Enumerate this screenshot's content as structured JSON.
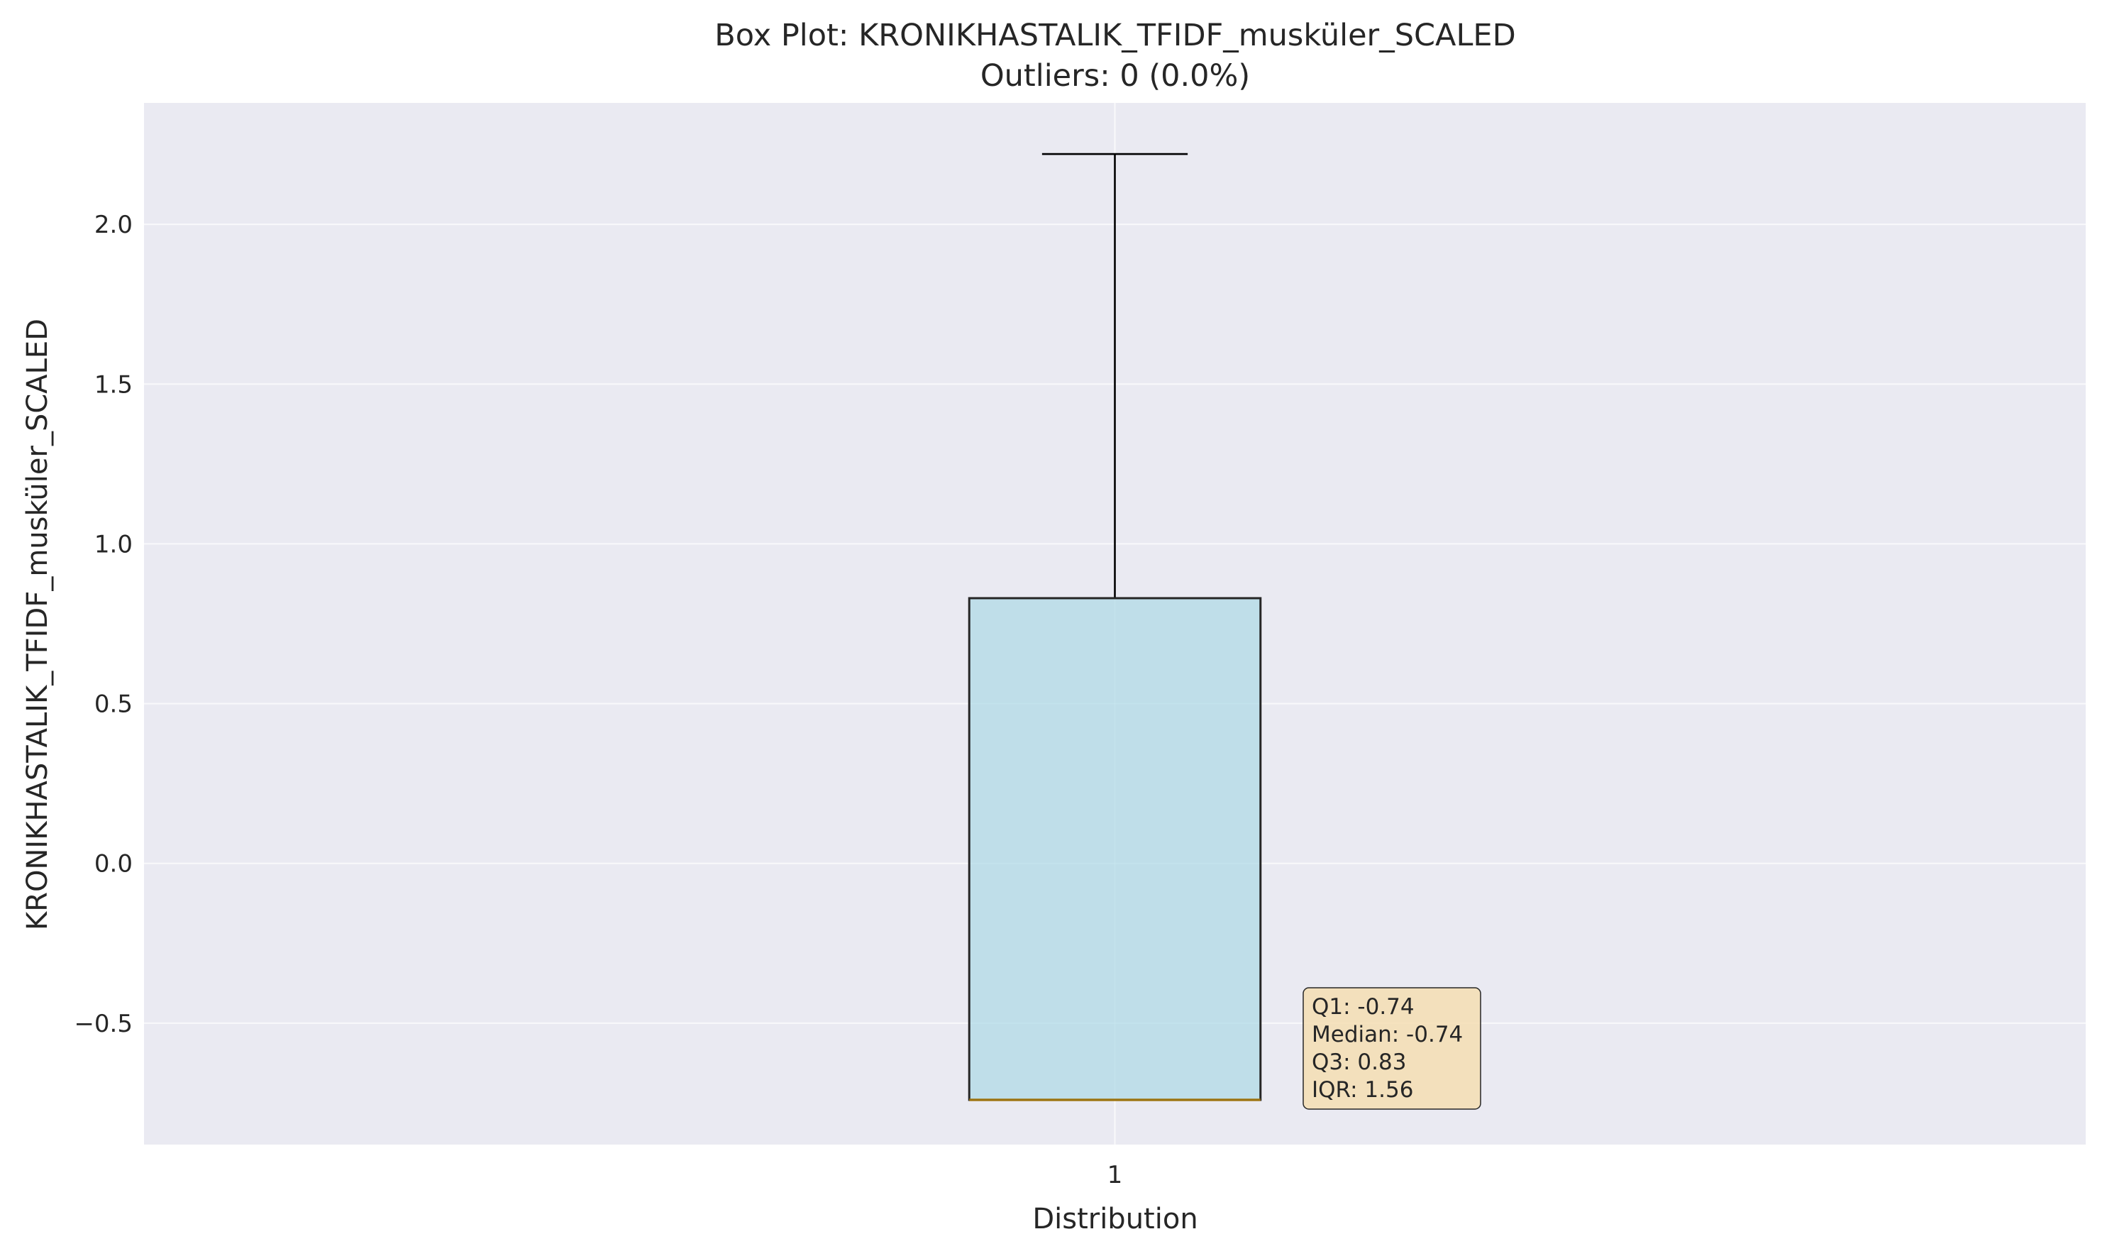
{
  "chart_data": {
    "type": "box",
    "title": "Box Plot: KRONIKHASTALIK_TFIDF_musküler_SCALED",
    "subtitle": "Outliers: 0 (0.0%)",
    "xlabel": "Distribution",
    "ylabel": "KRONIKHASTALIK_TFIDF_musküler_SCALED",
    "categories": [
      "1"
    ],
    "boxes": [
      {
        "category": "1",
        "whisker_low": -0.74,
        "q1": -0.74,
        "median": -0.74,
        "q3": 0.83,
        "whisker_high": 2.22,
        "outliers": []
      }
    ],
    "ylim": [
      -0.88,
      2.38
    ],
    "yticks": [
      -0.5,
      0.0,
      0.5,
      1.0,
      1.5,
      2.0
    ],
    "ytick_labels": [
      "−0.5",
      "0.0",
      "0.5",
      "1.0",
      "1.5",
      "2.0"
    ],
    "grid": true,
    "stats_box": {
      "q1": "Q1: -0.74",
      "median": "Median: -0.74",
      "q3": "Q3: 0.83",
      "iqr": "IQR: 1.56"
    },
    "colors": {
      "plot_background": "#eaeaf2",
      "grid": "#ffffff",
      "box_fill": "#add8e6",
      "box_edge": "#262626",
      "median_line": "#b8860b",
      "whisker": "#000000",
      "stats_box_fill": "#f5deb3"
    }
  }
}
